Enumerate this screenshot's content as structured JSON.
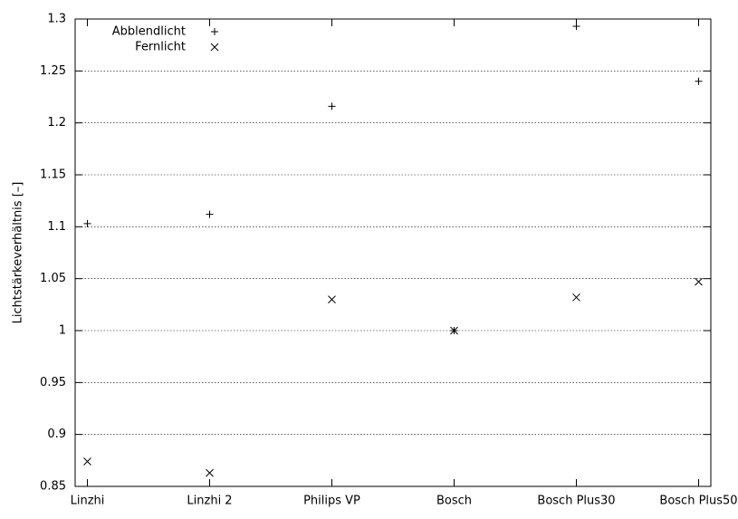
{
  "chart_data": {
    "type": "scatter",
    "y_label": "Lichtstärkeverhältnis [–]",
    "categories": [
      "Linzhi",
      "Linzhi 2",
      "Philips VP",
      "Bosch",
      "Bosch Plus30",
      "Bosch Plus50"
    ],
    "series": [
      {
        "name": "Abblendlicht",
        "color": "#000000",
        "marker": "plus",
        "values": [
          1.103,
          1.112,
          1.216,
          1.0,
          1.293,
          1.24
        ]
      },
      {
        "name": "Fernlicht",
        "color": "#000000",
        "marker": "cross",
        "values": [
          0.874,
          0.863,
          1.03,
          1.0,
          1.032,
          1.047
        ]
      }
    ],
    "ylim": [
      0.85,
      1.3
    ],
    "yticks": [
      0.85,
      0.9,
      0.95,
      1,
      1.05,
      1.1,
      1.15,
      1.2,
      1.25,
      1.3
    ],
    "grid": true,
    "legend": "top-left"
  }
}
